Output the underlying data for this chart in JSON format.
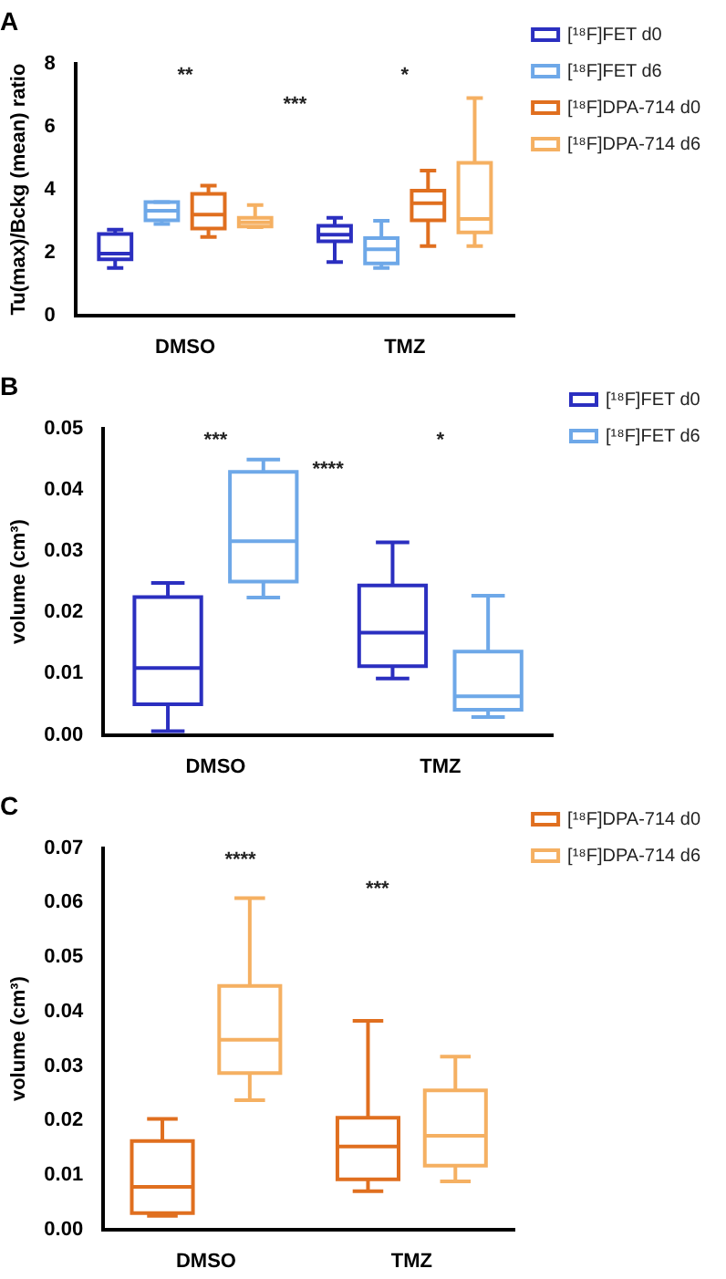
{
  "chart_data": [
    {
      "type": "box",
      "title": "A",
      "ylabel": "Tu(max)/Bckg (mean) ratio",
      "categories": [
        "DMSO",
        "TMZ"
      ],
      "ylim": [
        0,
        8
      ],
      "yticks": [
        0,
        2,
        4,
        6,
        8
      ],
      "legend": "right",
      "grid": false,
      "series": [
        {
          "name": "[¹⁸F]FET d0",
          "color": "#2b2fc0",
          "boxes": [
            {
              "low": 1.5,
              "q1": 1.78,
              "median": 1.96,
              "q3": 2.58,
              "high": 2.72
            },
            {
              "low": 1.69,
              "q1": 2.35,
              "median": 2.56,
              "q3": 2.84,
              "high": 3.1
            }
          ]
        },
        {
          "name": "[¹⁸F]FET d6",
          "color": "#6ea8e8",
          "boxes": [
            {
              "low": 2.9,
              "q1": 3.02,
              "median": 3.32,
              "q3": 3.6,
              "high": 3.6
            },
            {
              "low": 1.5,
              "q1": 1.65,
              "median": 2.1,
              "q3": 2.45,
              "high": 3.0
            }
          ]
        },
        {
          "name": "[¹⁸F]DPA-714 d0",
          "color": "#e06f1f",
          "boxes": [
            {
              "low": 2.49,
              "q1": 2.76,
              "median": 3.2,
              "q3": 3.86,
              "high": 4.12
            },
            {
              "low": 2.2,
              "q1": 3.02,
              "median": 3.56,
              "q3": 3.96,
              "high": 4.6
            }
          ]
        },
        {
          "name": "[¹⁸F]DPA-714 d6",
          "color": "#f5b062",
          "boxes": [
            {
              "low": 2.8,
              "q1": 2.82,
              "median": 2.95,
              "q3": 3.1,
              "high": 3.5
            },
            {
              "low": 2.2,
              "q1": 2.63,
              "median": 3.06,
              "q3": 4.84,
              "high": 6.9
            }
          ]
        }
      ],
      "annotations": [
        "**",
        "***",
        "*"
      ]
    },
    {
      "type": "box",
      "title": "B",
      "ylabel": "volume (cm³)",
      "categories": [
        "DMSO",
        "TMZ"
      ],
      "ylim": [
        0,
        0.05
      ],
      "yticks": [
        {
          "value": 0,
          "label": "0.00"
        },
        {
          "value": 0.01,
          "label": "0.01"
        },
        {
          "value": 0.02,
          "label": "0.02"
        },
        {
          "value": 0.03,
          "label": "0.03"
        },
        {
          "value": 0.04,
          "label": "0.04"
        },
        {
          "value": 0.05,
          "label": "0.05"
        }
      ],
      "legend": "right",
      "grid": false,
      "series": [
        {
          "name": "[¹⁸F]FET d0",
          "color": "#2b2fc0",
          "boxes": [
            {
              "low": 0.0006,
              "q1": 0.005,
              "median": 0.0109,
              "q3": 0.0225,
              "high": 0.0248
            },
            {
              "low": 0.0092,
              "q1": 0.0112,
              "median": 0.0167,
              "q3": 0.0244,
              "high": 0.0314
            }
          ]
        },
        {
          "name": "[¹⁸F]FET d6",
          "color": "#6ea8e8",
          "boxes": [
            {
              "low": 0.0224,
              "q1": 0.025,
              "median": 0.0316,
              "q3": 0.0429,
              "high": 0.0449
            },
            {
              "low": 0.0029,
              "q1": 0.0041,
              "median": 0.0063,
              "q3": 0.0136,
              "high": 0.0227
            }
          ]
        }
      ],
      "annotations": [
        "***",
        "****",
        "*"
      ]
    },
    {
      "type": "box",
      "title": "C",
      "ylabel": "volume (cm³)",
      "categories": [
        "DMSO",
        "TMZ"
      ],
      "ylim": [
        0,
        0.07
      ],
      "yticks": [
        {
          "value": 0,
          "label": "0.00"
        },
        {
          "value": 0.01,
          "label": "0.01"
        },
        {
          "value": 0.02,
          "label": "0.02"
        },
        {
          "value": 0.03,
          "label": "0.03"
        },
        {
          "value": 0.04,
          "label": "0.04"
        },
        {
          "value": 0.05,
          "label": "0.05"
        },
        {
          "value": 0.06,
          "label": "0.06"
        },
        {
          "value": 0.07,
          "label": "0.07"
        }
      ],
      "legend": "right",
      "grid": false,
      "series": [
        {
          "name": "[¹⁸F]DPA-714 d0",
          "color": "#e06f1f",
          "boxes": [
            {
              "low": 0.0025,
              "q1": 0.003,
              "median": 0.0078,
              "q3": 0.0162,
              "high": 0.0203
            },
            {
              "low": 0.007,
              "q1": 0.0092,
              "median": 0.0152,
              "q3": 0.0205,
              "high": 0.0383
            }
          ]
        },
        {
          "name": "[¹⁸F]DPA-714 d6",
          "color": "#f5b062",
          "boxes": [
            {
              "low": 0.0237,
              "q1": 0.0287,
              "median": 0.0348,
              "q3": 0.0447,
              "high": 0.0608
            },
            {
              "low": 0.0088,
              "q1": 0.0117,
              "median": 0.0172,
              "q3": 0.0255,
              "high": 0.0317
            }
          ]
        }
      ],
      "annotations": [
        "****",
        "***"
      ]
    }
  ]
}
